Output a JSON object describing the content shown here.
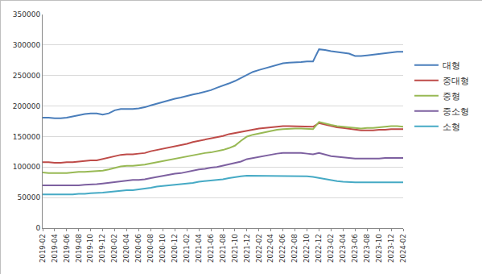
{
  "chart_data": {
    "type": "line",
    "categories": [
      "2019-02",
      null,
      "2019-04",
      null,
      "2019-06",
      null,
      "2019-08",
      null,
      "2019-10",
      null,
      "2019-12",
      null,
      "2020-02",
      null,
      "2020-04",
      null,
      "2020-06",
      null,
      "2020-08",
      null,
      "2020-10",
      null,
      "2020-12",
      null,
      "2021-02",
      null,
      "2021-04",
      null,
      "2021-06",
      null,
      "2021-08",
      null,
      "2021-10",
      null,
      "2021-12",
      null,
      "2022-02",
      null,
      "2022-04",
      null,
      "2022-06",
      null,
      "2022-08",
      null,
      "2022-10",
      null,
      "2022-12",
      null,
      "2023-02",
      null,
      "2023-04",
      null,
      "2023-06",
      null,
      "2023-08",
      null,
      "2023-10",
      null,
      "2023-12",
      null,
      "2024-02"
    ],
    "series": [
      {
        "name": "대형",
        "color": "#4a7ebb",
        "values": [
          181000,
          181000,
          180000,
          180000,
          181000,
          183000,
          185000,
          187000,
          188000,
          188000,
          186000,
          188000,
          193000,
          195000,
          195000,
          195000,
          196000,
          198000,
          201000,
          204000,
          207000,
          209000,
          212000,
          214000,
          217000,
          219000,
          221000,
          223000,
          226000,
          230000,
          233000,
          237000,
          241000,
          246000,
          252000,
          256000,
          259000,
          262000,
          265000,
          268000,
          270000,
          271000,
          271000,
          272000,
          273000,
          273000,
          293000,
          292000,
          290000,
          289000,
          287000,
          286000,
          282000,
          282000,
          283000,
          284000,
          286000,
          287000,
          288000,
          289000,
          289000
        ]
      },
      {
        "name": "중대형",
        "color": "#be4b48",
        "values": [
          108000,
          108000,
          107000,
          107000,
          108000,
          108000,
          109000,
          110000,
          111000,
          111000,
          113000,
          115000,
          118000,
          120000,
          121000,
          121000,
          122000,
          123000,
          126000,
          128000,
          130000,
          132000,
          134000,
          136000,
          138000,
          141000,
          143000,
          145000,
          147000,
          149000,
          151000,
          154000,
          156000,
          158000,
          160000,
          162000,
          163000,
          164000,
          165000,
          166000,
          167000,
          167000,
          167000,
          167000,
          167000,
          166000,
          172000,
          170000,
          167000,
          165000,
          164000,
          163000,
          161000,
          160000,
          160000,
          160000,
          161000,
          161000,
          162000,
          162000,
          162000
        ]
      },
      {
        "name": "중형",
        "color": "#98b954",
        "values": [
          91000,
          90000,
          90000,
          90000,
          90000,
          91000,
          92000,
          92000,
          93000,
          93000,
          94000,
          96000,
          99000,
          101000,
          102000,
          102000,
          103000,
          104000,
          106000,
          108000,
          110000,
          111000,
          113000,
          115000,
          117000,
          119000,
          121000,
          123000,
          124000,
          126000,
          128000,
          131000,
          135000,
          143000,
          150000,
          153000,
          155000,
          157000,
          159000,
          161000,
          162000,
          163000,
          163000,
          163000,
          163000,
          162000,
          174000,
          172000,
          169000,
          167000,
          166000,
          165000,
          164000,
          163000,
          164000,
          164000,
          165000,
          166000,
          167000,
          167000,
          166000
        ]
      },
      {
        "name": "중소형",
        "color": "#7d60a0",
        "values": [
          70000,
          70000,
          70000,
          70000,
          70000,
          70000,
          70000,
          71000,
          71000,
          72000,
          73000,
          74000,
          76000,
          77000,
          78000,
          79000,
          79000,
          80000,
          82000,
          84000,
          86000,
          87000,
          89000,
          90000,
          92000,
          94000,
          96000,
          97000,
          99000,
          100000,
          102000,
          104000,
          106000,
          109000,
          113000,
          115000,
          117000,
          119000,
          120000,
          122000,
          123000,
          123000,
          123000,
          123000,
          122000,
          121000,
          123000,
          121000,
          118000,
          117000,
          116000,
          115000,
          114000,
          114000,
          114000,
          114000,
          114000,
          115000,
          115000,
          115000,
          115000
        ]
      },
      {
        "name": "소형",
        "color": "#46aac5",
        "values": [
          55000,
          55000,
          55000,
          55000,
          55000,
          55000,
          56000,
          56000,
          57000,
          57000,
          58000,
          59000,
          60000,
          61000,
          62000,
          62000,
          63000,
          64000,
          66000,
          68000,
          69000,
          70000,
          71000,
          72000,
          73000,
          74000,
          76000,
          77000,
          78000,
          79000,
          80000,
          82000,
          84000,
          85000,
          86000,
          86000,
          86000,
          86000,
          86000,
          86000,
          86000,
          86000,
          86000,
          86000,
          85000,
          84000,
          82000,
          80000,
          78000,
          77000,
          76000,
          75000,
          75000,
          75000,
          75000,
          75000,
          75000,
          76000,
          76000,
          75000,
          75000
        ]
      }
    ],
    "ylim": [
      0,
      350000
    ],
    "yticks": [
      0,
      50000,
      100000,
      150000,
      200000,
      250000,
      300000,
      350000
    ],
    "grid": true,
    "legend": "right"
  }
}
